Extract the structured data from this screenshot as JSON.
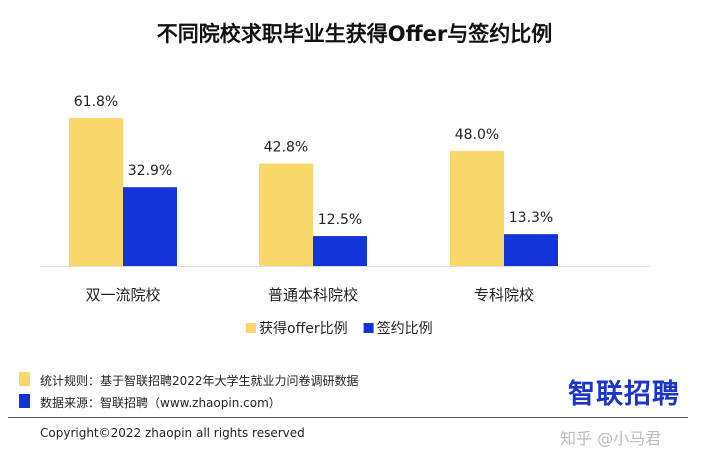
{
  "chart_data": {
    "type": "bar",
    "title": "不同院校求职毕业生获得Offer与签约比例",
    "categories": [
      "双一流院校",
      "普通本科院校",
      "专科院校"
    ],
    "series": [
      {
        "name": "获得offer比例",
        "values": [
          61.8,
          42.8,
          48.0
        ],
        "labels": [
          "61.8%",
          "42.8%",
          "48.0%"
        ],
        "color": "#F8D86B"
      },
      {
        "name": "签约比例",
        "values": [
          32.9,
          12.5,
          13.3
        ],
        "labels": [
          "32.9%",
          "12.5%",
          "13.3%"
        ],
        "color": "#1234D8"
      }
    ],
    "xlabel": "",
    "ylabel": "",
    "ylim": [
      0,
      70
    ],
    "grid": false,
    "legend": "bottom-center"
  },
  "footer": {
    "rule_text": "统计规则：基于智联招聘2022年大学生就业力问卷调研数据",
    "source_text": "数据来源：智联招聘（www.zhaopin.com）",
    "copyright": "Copyright©2022 zhaopin all rights reserved",
    "logo": "智联招聘",
    "watermark": "知乎 @小马君",
    "rule_color": "#F8D86B",
    "source_color": "#1234D8"
  }
}
